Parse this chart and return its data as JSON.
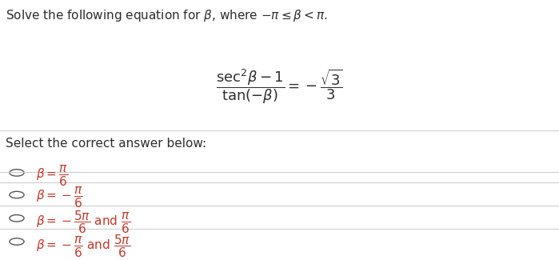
{
  "title_text": "Solve the following equation for $\\beta$, where $-\\pi \\leq \\beta < \\pi$.",
  "equation": "$\\dfrac{\\sec^2\\!\\beta - 1}{\\tan(-\\beta)} = -\\dfrac{\\sqrt{3}}{3}$",
  "select_text": "Select the correct answer below:",
  "answers": [
    "$\\beta = \\dfrac{\\pi}{6}$",
    "$\\beta = -\\dfrac{\\pi}{6}$",
    "$\\beta = -\\dfrac{5\\pi}{6}$ and $\\dfrac{\\pi}{6}$",
    "$\\beta = -\\dfrac{\\pi}{6}$ and $\\dfrac{5\\pi}{6}$"
  ],
  "bg_color": "#ffffff",
  "text_color": "#2e2e2e",
  "math_color": "#c0392b",
  "title_fontsize": 11,
  "eq_fontsize": 13,
  "answer_fontsize": 11,
  "select_fontsize": 11,
  "line_color": "#cccccc"
}
